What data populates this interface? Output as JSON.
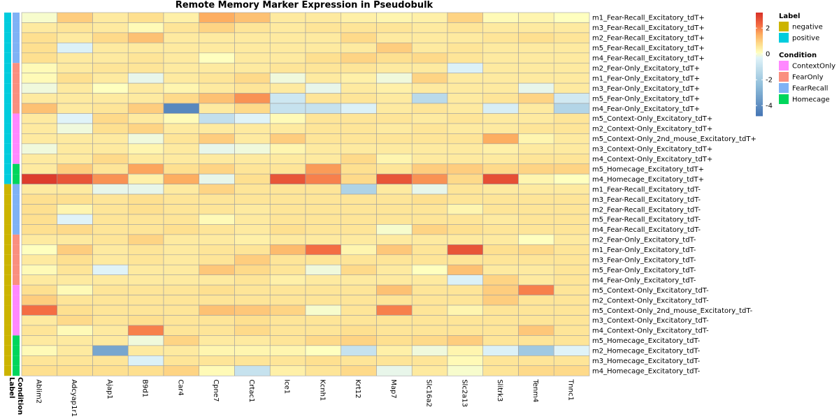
{
  "chart_data": {
    "type": "heatmap",
    "title": "Remote Memory Marker Expression in Pseudobulk",
    "columns": [
      "Ablim2",
      "Adcyap1r1",
      "Ajap1",
      "B9d1",
      "Car4",
      "Cpne7",
      "Crtac1",
      "Ice1",
      "Kcnh1",
      "Krt12",
      "Map7",
      "Slc16a2",
      "Slc2a13",
      "Slitrk3",
      "Tenm4",
      "Tnnc1"
    ],
    "rows": [
      "m1_Fear-Recall_Excitatory_tdT+",
      "m3_Fear-Recall_Excitatory_tdT+",
      "m2_Fear-Recall_Excitatory_tdT+",
      "m5_Fear-Recall_Excitatory_tdT+",
      "m4_Fear-Recall_Excitatory_tdT+",
      "m2_Fear-Only_Excitatory_tdT+",
      "m1_Fear-Only_Excitatory_tdT+",
      "m3_Fear-Only_Excitatory_tdT+",
      "m5_Fear-Only_Excitatory_tdT+",
      "m4_Fear-Only_Excitatory_tdT+",
      "m5_Context-Only_Excitatory_tdT+",
      "m2_Context-Only_Excitatory_tdT+",
      "m5_Context-Only_2nd_mouse_Excitatory_tdT+",
      "m3_Context-Only_Excitatory_tdT+",
      "m4_Context-Only_Excitatory_tdT+",
      "m5_Homecage_Excitatory_tdT+",
      "m4_Homecage_Excitatory_tdT+",
      "m1_Fear-Recall_Excitatory_tdT-",
      "m3_Fear-Recall_Excitatory_tdT-",
      "m2_Fear-Recall_Excitatory_tdT-",
      "m5_Fear-Recall_Excitatory_tdT-",
      "m4_Fear-Recall_Excitatory_tdT-",
      "m2_Fear-Only_Excitatory_tdT-",
      "m1_Fear-Only_Excitatory_tdT-",
      "m3_Fear-Only_Excitatory_tdT-",
      "m5_Fear-Only_Excitatory_tdT-",
      "m4_Fear-Only_Excitatory_tdT-",
      "m5_Context-Only_Excitatory_tdT-",
      "m2_Context-Only_Excitatory_tdT-",
      "m5_Context-Only_2nd_mouse_Excitatory_tdT-",
      "m3_Context-Only_Excitatory_tdT-",
      "m4_Context-Only_Excitatory_tdT-",
      "m5_Homecage_Excitatory_tdT-",
      "m2_Homecage_Excitatory_tdT-",
      "m3_Homecage_Excitatory_tdT-",
      "m4_Homecage_Excitatory_tdT-"
    ],
    "values": [
      [
        0,
        1,
        0.5,
        0.7,
        0.4,
        1.5,
        1.2,
        0.5,
        0.5,
        0.4,
        0.3,
        0.4,
        0.9,
        0.2,
        0.3,
        0.1
      ],
      [
        0.5,
        0.6,
        0.5,
        0.2,
        0.6,
        0.9,
        0.6,
        0.5,
        0.6,
        0.6,
        0.6,
        0.5,
        0.6,
        0.5,
        0.5,
        0.5
      ],
      [
        0.7,
        0.5,
        0.8,
        1.2,
        0.5,
        0.5,
        0.5,
        0.5,
        0.5,
        0.8,
        0.5,
        0.5,
        0.5,
        0.6,
        0.7,
        0.6
      ],
      [
        0.7,
        -0.4,
        0.5,
        0.5,
        0.5,
        0.5,
        0.5,
        0.5,
        0.5,
        0.5,
        1.0,
        0.5,
        0.6,
        0.5,
        0.5,
        0.5
      ],
      [
        0.7,
        0.5,
        0.5,
        0.6,
        0.5,
        0.1,
        0.5,
        0.5,
        0.7,
        0.9,
        0.7,
        0.8,
        0.6,
        0.5,
        0.5,
        0.5
      ],
      [
        0.2,
        0.5,
        0.6,
        0.6,
        0.5,
        0.5,
        0.5,
        0.6,
        0.6,
        0.6,
        0.5,
        0.5,
        -0.4,
        0.5,
        0.5,
        0.5
      ],
      [
        0.2,
        0.7,
        0.5,
        -0.2,
        0.5,
        0.6,
        0.8,
        -0.1,
        0.5,
        0.4,
        -0.1,
        0.9,
        0.5,
        0.5,
        0.5,
        0.5
      ],
      [
        -0.1,
        0.5,
        0.1,
        0.5,
        0.3,
        0.5,
        0.6,
        0.5,
        -0.2,
        0.5,
        0.4,
        0.5,
        0.5,
        0.5,
        -0.2,
        0.5
      ],
      [
        0.5,
        0.5,
        0.5,
        0.5,
        0.8,
        1.2,
        1.8,
        -0.8,
        0.6,
        0.6,
        0.5,
        -1.3,
        0.5,
        0.6,
        0.9,
        -0.7
      ],
      [
        1.2,
        0.5,
        0.6,
        1.0,
        -4.2,
        0.5,
        0.8,
        -1.0,
        -1.0,
        -0.4,
        0.5,
        0.6,
        0.5,
        -0.5,
        0.5,
        -1.5
      ],
      [
        0.5,
        -0.3,
        0.8,
        0.5,
        0.2,
        -1.1,
        -0.3,
        0.2,
        0.6,
        0.6,
        0.6,
        0.5,
        0.6,
        0.5,
        0.5,
        0.6
      ],
      [
        0.5,
        -0.1,
        0.7,
        0.9,
        0.5,
        0.5,
        0.5,
        0.5,
        0.6,
        0.6,
        0.5,
        0.6,
        0.5,
        0.5,
        0.6,
        0.6
      ],
      [
        0.5,
        0.5,
        0.5,
        -0.1,
        0.6,
        1.0,
        0.5,
        1.0,
        0.6,
        0.6,
        0.6,
        0.6,
        0.6,
        1.5,
        0.3,
        0.5
      ],
      [
        -0.1,
        0.5,
        0.5,
        0.3,
        0.5,
        -0.2,
        -0.1,
        0.3,
        0.5,
        0.5,
        0.5,
        0.5,
        0.5,
        0.4,
        0.5,
        0.5
      ],
      [
        0.5,
        0.5,
        0.8,
        0.5,
        0.5,
        0.5,
        0.5,
        0.5,
        0.5,
        0.8,
        0.3,
        0.5,
        0.5,
        0.5,
        0.6,
        0.6
      ],
      [
        0.5,
        1.0,
        0.6,
        1.6,
        0.7,
        0.9,
        0.6,
        0.6,
        1.7,
        0.7,
        0.6,
        1.0,
        1.0,
        0.8,
        0.9,
        0.9
      ],
      [
        3.0,
        2.6,
        1.8,
        0.4,
        1.5,
        -0.2,
        0.7,
        2.6,
        2.0,
        0.8,
        2.6,
        1.8,
        0.8,
        2.7,
        0.3,
        0.1
      ],
      [
        0.5,
        0.5,
        -0.2,
        -0.2,
        0.5,
        0.9,
        0.6,
        0.6,
        0.6,
        -1.6,
        0.5,
        -0.2,
        0.6,
        0.5,
        0.5,
        0.5
      ],
      [
        0.7,
        0.7,
        0.6,
        0.7,
        0.6,
        0.6,
        0.6,
        0.6,
        0.6,
        0.6,
        0.6,
        0.7,
        0.6,
        0.6,
        0.6,
        0.6
      ],
      [
        0.7,
        0.3,
        0.6,
        0.7,
        0.6,
        0.6,
        0.5,
        0.6,
        0.6,
        0.6,
        0.6,
        0.6,
        0.3,
        0.6,
        0.6,
        0.6
      ],
      [
        0.7,
        -0.3,
        0.6,
        0.6,
        0.6,
        0.2,
        0.5,
        0.6,
        0.6,
        0.6,
        0.6,
        0.6,
        0.6,
        0.5,
        0.6,
        0.6
      ],
      [
        0.7,
        0.8,
        0.6,
        0.6,
        0.7,
        0.6,
        0.5,
        0.7,
        0.6,
        0.6,
        0.0,
        0.9,
        0.7,
        0.6,
        0.6,
        0.6
      ],
      [
        0.5,
        0.5,
        0.6,
        0.9,
        0.5,
        0.5,
        0.4,
        0.5,
        0.5,
        0.5,
        0.5,
        0.5,
        0.5,
        0.5,
        0.1,
        0.5
      ],
      [
        0.1,
        1.0,
        0.5,
        0.6,
        0.5,
        0.6,
        0.6,
        1.3,
        2.2,
        0.3,
        1.1,
        0.6,
        2.6,
        0.7,
        0.8,
        0.6
      ],
      [
        0.5,
        0.7,
        0.5,
        0.6,
        0.5,
        0.6,
        1.0,
        0.6,
        0.6,
        0.6,
        0.6,
        0.6,
        0.6,
        0.6,
        0.6,
        0.6
      ],
      [
        0.2,
        0.6,
        -0.3,
        0.5,
        0.5,
        1.1,
        0.8,
        0.6,
        -0.1,
        0.8,
        0.5,
        0.1,
        1.2,
        0.5,
        0.5,
        0.6
      ],
      [
        0.5,
        0.5,
        0.5,
        0.5,
        0.5,
        0.5,
        0.6,
        0.4,
        0.5,
        0.5,
        0.5,
        0.5,
        -0.4,
        0.9,
        0.5,
        0.6
      ],
      [
        0.7,
        0.2,
        0.6,
        0.6,
        0.6,
        0.7,
        0.6,
        0.6,
        0.6,
        0.6,
        1.2,
        0.6,
        0.6,
        1.0,
        2.0,
        0.6
      ],
      [
        1.0,
        0.6,
        0.6,
        0.6,
        0.6,
        0.6,
        0.6,
        0.6,
        0.6,
        0.6,
        0.6,
        0.6,
        0.6,
        1.0,
        0.6,
        0.6
      ],
      [
        2.2,
        0.7,
        0.6,
        0.6,
        0.6,
        1.2,
        1.1,
        0.9,
        0.0,
        0.6,
        2.0,
        0.6,
        0.3,
        0.6,
        0.6,
        0.6
      ],
      [
        0.5,
        0.8,
        0.6,
        0.7,
        0.6,
        0.6,
        0.7,
        0.6,
        0.6,
        0.6,
        0.6,
        0.6,
        0.6,
        0.6,
        0.6,
        0.6
      ],
      [
        0.6,
        0.2,
        0.5,
        2.0,
        0.6,
        0.6,
        0.8,
        0.6,
        0.6,
        0.7,
        0.6,
        0.6,
        0.6,
        0.6,
        1.1,
        0.6
      ],
      [
        0.5,
        0.5,
        0.5,
        -0.1,
        0.9,
        0.5,
        0.5,
        0.6,
        0.8,
        0.9,
        0.7,
        0.8,
        1.0,
        0.6,
        0.6,
        0.6
      ],
      [
        0.2,
        0.5,
        -3.2,
        0.5,
        0.5,
        0.3,
        0.3,
        0.3,
        0.1,
        -1.0,
        0.4,
        -0.1,
        0.3,
        -0.4,
        -2.0,
        -0.3
      ],
      [
        0.6,
        0.6,
        0.6,
        -0.4,
        0.6,
        0.6,
        0.6,
        0.6,
        0.7,
        0.6,
        0.6,
        0.6,
        0.2,
        0.6,
        0.6,
        0.6
      ],
      [
        0.7,
        0.7,
        0.7,
        0.7,
        0.9,
        0.2,
        -1.0,
        0.4,
        0.6,
        0.8,
        -0.2,
        0.5,
        0.0,
        0.6,
        0.8,
        0.8
      ]
    ],
    "label_annotation": [
      "positive",
      "positive",
      "positive",
      "positive",
      "positive",
      "positive",
      "positive",
      "positive",
      "positive",
      "positive",
      "positive",
      "positive",
      "positive",
      "positive",
      "positive",
      "positive",
      "positive",
      "negative",
      "negative",
      "negative",
      "negative",
      "negative",
      "negative",
      "negative",
      "negative",
      "negative",
      "negative",
      "negative",
      "negative",
      "negative",
      "negative",
      "negative",
      "negative",
      "negative",
      "negative",
      "negative"
    ],
    "condition_annotation": [
      "FearRecall",
      "FearRecall",
      "FearRecall",
      "FearRecall",
      "FearRecall",
      "FearOnly",
      "FearOnly",
      "FearOnly",
      "FearOnly",
      "FearOnly",
      "ContextOnly",
      "ContextOnly",
      "ContextOnly",
      "ContextOnly",
      "ContextOnly",
      "Homecage",
      "Homecage",
      "FearRecall",
      "FearRecall",
      "FearRecall",
      "FearRecall",
      "FearRecall",
      "FearOnly",
      "FearOnly",
      "FearOnly",
      "FearOnly",
      "FearOnly",
      "ContextOnly",
      "ContextOnly",
      "ContextOnly",
      "ContextOnly",
      "ContextOnly",
      "Homecage",
      "Homecage",
      "Homecage",
      "Homecage"
    ],
    "annotation_titles": {
      "label": "Label",
      "condition": "Condition"
    },
    "color_scale": {
      "min": -4.8,
      "max": 3.2,
      "ticks": [
        2,
        0,
        -2,
        -4
      ],
      "stops": [
        {
          "v": -4.8,
          "c": "#4575b4"
        },
        {
          "v": -2.4,
          "c": "#91bfdb"
        },
        {
          "v": -0.3,
          "c": "#e0f3f8"
        },
        {
          "v": 0.1,
          "c": "#ffffbf"
        },
        {
          "v": 0.7,
          "c": "#fee090"
        },
        {
          "v": 1.5,
          "c": "#fdae61"
        },
        {
          "v": 2.2,
          "c": "#f46d43"
        },
        {
          "v": 3.2,
          "c": "#d73027"
        }
      ]
    },
    "legend": {
      "label": {
        "title": "Label",
        "items": [
          {
            "name": "negative",
            "color": "#ccb400"
          },
          {
            "name": "positive",
            "color": "#00ccdd"
          }
        ]
      },
      "condition": {
        "title": "Condition",
        "items": [
          {
            "name": "ContextOnly",
            "color": "#ff88ff"
          },
          {
            "name": "FearOnly",
            "color": "#fa8f7f"
          },
          {
            "name": "FearRecall",
            "color": "#7fb2f5"
          },
          {
            "name": "Homecage",
            "color": "#00d65c"
          }
        ]
      }
    }
  }
}
